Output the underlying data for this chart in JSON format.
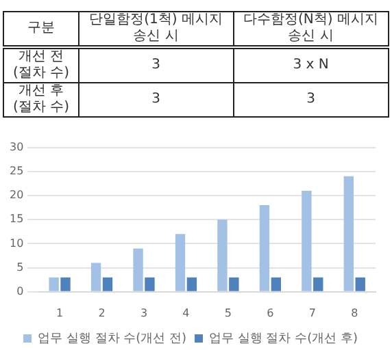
{
  "chart_data": [
    {
      "type": "other",
      "categories": [
        "구분",
        "단일함정(1척) 메시지 송신 시",
        "다수함정(N척) 메시지 송신 시"
      ],
      "annotations": [
        "개선 전 (절차 수)",
        "3",
        "3 x N",
        "개선 후 (절차 수)",
        "3",
        "3"
      ]
    },
    {
      "type": "bar",
      "categories": [
        "1",
        "2",
        "3",
        "4",
        "5",
        "6",
        "7",
        "8"
      ],
      "series": [
        {
          "name": "업무 실행 절차 수(개선 전)",
          "color": "#a3c1e4",
          "values": [
            3,
            6,
            9,
            12,
            15,
            18,
            21,
            24
          ]
        },
        {
          "name": "업무 실행 절차 수(개선 후)",
          "color": "#4f81bd",
          "values": [
            3,
            3,
            3,
            3,
            3,
            3,
            3,
            3
          ]
        }
      ],
      "ylim": [
        0,
        30
      ],
      "yticks": [
        0,
        5,
        10,
        15,
        20,
        25,
        30
      ],
      "grid": "y",
      "legend": "bottom"
    }
  ]
}
